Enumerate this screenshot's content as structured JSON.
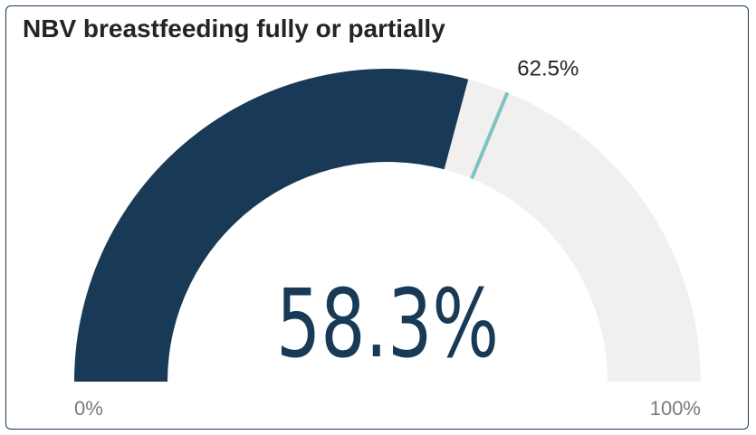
{
  "chart_data": {
    "type": "gauge",
    "title": "NBV breastfeeding fully or partially",
    "value": 58.3,
    "value_label": "58.3%",
    "min": 0,
    "max": 100,
    "min_label": "0%",
    "max_label": "100%",
    "target": 62.5,
    "target_label": "62.5%",
    "colors": {
      "fill": "#183a56",
      "track": "#f1f0ef",
      "target": "#7cc3c1",
      "value_text": "#183a56"
    }
  }
}
